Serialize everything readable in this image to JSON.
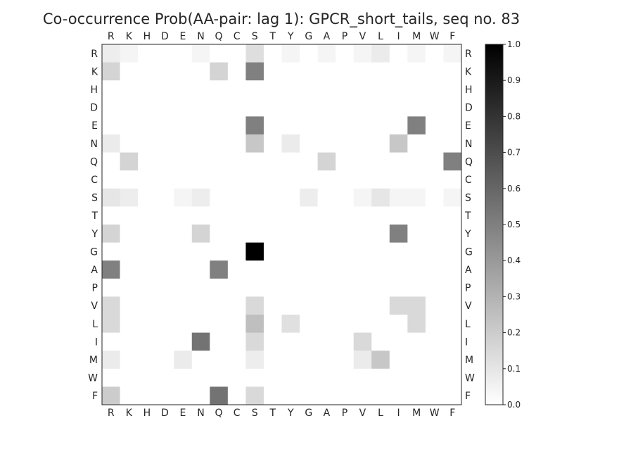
{
  "chart_data": {
    "type": "heatmap",
    "title": "Co-occurrence Prob(AA-pair: lag 1):  GPCR_short_tails, seq no. 83",
    "xlabel": "",
    "ylabel": "",
    "x_categories": [
      "R",
      "K",
      "H",
      "D",
      "E",
      "N",
      "Q",
      "C",
      "S",
      "T",
      "Y",
      "G",
      "A",
      "P",
      "V",
      "L",
      "I",
      "M",
      "W",
      "F"
    ],
    "y_categories": [
      "R",
      "K",
      "H",
      "D",
      "E",
      "N",
      "Q",
      "C",
      "S",
      "T",
      "Y",
      "G",
      "A",
      "P",
      "V",
      "L",
      "I",
      "M",
      "W",
      "F"
    ],
    "colorscale": {
      "min": 0.0,
      "max": 1.0,
      "low_color": "#ffffff",
      "high_color": "#000000"
    },
    "colorbar_ticks": [
      "0.0",
      "0.1",
      "0.2",
      "0.3",
      "0.4",
      "0.5",
      "0.6",
      "0.7",
      "0.8",
      "0.9",
      "1.0"
    ],
    "grid": false,
    "values": [
      [
        0.07,
        0.04,
        0,
        0,
        0,
        0.04,
        0,
        0,
        0.13,
        0,
        0.04,
        0,
        0.04,
        0,
        0.04,
        0.08,
        0,
        0.04,
        0,
        0.04
      ],
      [
        0.17,
        0,
        0,
        0,
        0,
        0,
        0.17,
        0,
        0.5,
        0,
        0,
        0,
        0,
        0,
        0,
        0,
        0,
        0,
        0,
        0
      ],
      [
        0,
        0,
        0,
        0,
        0,
        0,
        0,
        0,
        0,
        0,
        0,
        0,
        0,
        0,
        0,
        0,
        0,
        0,
        0,
        0
      ],
      [
        0,
        0,
        0,
        0,
        0,
        0,
        0,
        0,
        0,
        0,
        0,
        0,
        0,
        0,
        0,
        0,
        0,
        0,
        0,
        0
      ],
      [
        0,
        0,
        0,
        0,
        0,
        0,
        0,
        0,
        0.5,
        0,
        0,
        0,
        0,
        0,
        0,
        0,
        0,
        0.5,
        0,
        0
      ],
      [
        0.08,
        0,
        0,
        0,
        0,
        0,
        0,
        0,
        0.22,
        0,
        0.08,
        0,
        0,
        0,
        0,
        0,
        0.22,
        0,
        0,
        0
      ],
      [
        0,
        0.17,
        0,
        0,
        0,
        0,
        0,
        0,
        0,
        0,
        0,
        0,
        0.17,
        0,
        0,
        0,
        0,
        0,
        0,
        0.5
      ],
      [
        0,
        0,
        0,
        0,
        0,
        0,
        0,
        0,
        0,
        0,
        0,
        0,
        0,
        0,
        0,
        0,
        0,
        0,
        0,
        0
      ],
      [
        0.1,
        0.07,
        0,
        0,
        0.04,
        0.07,
        0,
        0,
        0,
        0,
        0,
        0.07,
        0,
        0,
        0.04,
        0.1,
        0.04,
        0.04,
        0,
        0.04
      ],
      [
        0,
        0,
        0,
        0,
        0,
        0,
        0,
        0,
        0,
        0,
        0,
        0,
        0,
        0,
        0,
        0,
        0,
        0,
        0,
        0
      ],
      [
        0.17,
        0,
        0,
        0,
        0,
        0.17,
        0,
        0,
        0,
        0,
        0,
        0,
        0,
        0,
        0,
        0,
        0.5,
        0,
        0,
        0
      ],
      [
        0,
        0,
        0,
        0,
        0,
        0,
        0,
        0,
        1.0,
        0,
        0,
        0,
        0,
        0,
        0,
        0,
        0,
        0,
        0,
        0
      ],
      [
        0.5,
        0,
        0,
        0,
        0,
        0,
        0.5,
        0,
        0,
        0,
        0,
        0,
        0,
        0,
        0,
        0,
        0,
        0,
        0,
        0
      ],
      [
        0,
        0,
        0,
        0,
        0,
        0,
        0,
        0,
        0,
        0,
        0,
        0,
        0,
        0,
        0,
        0,
        0,
        0,
        0,
        0
      ],
      [
        0.15,
        0,
        0,
        0,
        0,
        0,
        0,
        0,
        0.15,
        0,
        0,
        0,
        0,
        0,
        0,
        0,
        0.15,
        0.15,
        0,
        0
      ],
      [
        0.15,
        0,
        0,
        0,
        0,
        0,
        0,
        0,
        0.25,
        0,
        0.12,
        0,
        0,
        0,
        0,
        0,
        0,
        0.15,
        0,
        0
      ],
      [
        0,
        0,
        0,
        0,
        0,
        0.55,
        0,
        0,
        0.15,
        0,
        0,
        0,
        0,
        0,
        0.15,
        0,
        0,
        0,
        0,
        0
      ],
      [
        0.08,
        0,
        0,
        0,
        0.08,
        0,
        0,
        0,
        0.07,
        0,
        0,
        0,
        0,
        0,
        0.08,
        0.22,
        0,
        0,
        0,
        0
      ],
      [
        0,
        0,
        0,
        0,
        0,
        0,
        0,
        0,
        0,
        0,
        0,
        0,
        0,
        0,
        0,
        0,
        0,
        0,
        0,
        0
      ],
      [
        0.2,
        0,
        0,
        0,
        0,
        0,
        0.55,
        0,
        0.15,
        0,
        0,
        0,
        0,
        0,
        0,
        0,
        0,
        0,
        0,
        0
      ]
    ]
  }
}
